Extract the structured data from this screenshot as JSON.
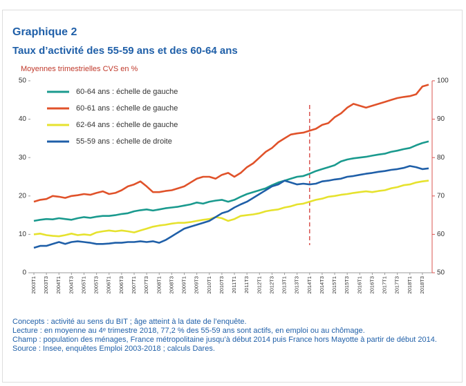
{
  "chart_data": {
    "type": "line",
    "title": "Graphique 2",
    "subtitle": "Taux d’activité des 55-59 ans et des 60-64 ans",
    "ylabel": "Moyennes trimestrielles CVS en %",
    "categories": [
      "2003T1",
      null,
      "2003T3",
      null,
      "2004T1",
      null,
      "2004T3",
      null,
      "2005T1",
      null,
      "2005T3",
      null,
      "2006T1",
      null,
      "2006T3",
      null,
      "2007T1",
      null,
      "2007T3",
      null,
      "2008T1",
      null,
      "2008T3",
      null,
      "2009T1",
      null,
      "2009T3",
      null,
      "2010T1",
      null,
      "2010T3",
      null,
      "2011T1",
      null,
      "2011T3",
      null,
      "2012T1",
      null,
      "2012T3",
      null,
      "2013T1",
      null,
      "2013T3",
      null,
      "2014T1",
      null,
      "2014T3",
      null,
      "2015T1",
      null,
      "2015T3",
      null,
      "2016T1",
      null,
      "2016T3",
      null,
      "2017T1",
      null,
      "2017T3",
      null,
      "2018T1",
      null,
      "2018T3",
      null
    ],
    "ylim": [
      0,
      50
    ],
    "yticks": [
      0,
      10,
      20,
      30,
      40,
      50
    ],
    "y2lim": [
      50,
      100
    ],
    "y2ticks": [
      50,
      60,
      70,
      80,
      90,
      100
    ],
    "y2color": "#d9534f",
    "legend": "upper left",
    "vlines": [
      {
        "x": "2014T1",
        "color": "#d9534f",
        "style": "dashed"
      }
    ],
    "series": [
      {
        "name": "60-64 ans : échelle de gauche",
        "color": "#1a9a8e",
        "values": [
          13.5,
          13.8,
          14.0,
          13.9,
          14.2,
          14.0,
          13.8,
          14.2,
          14.5,
          14.3,
          14.6,
          14.8,
          14.8,
          15.0,
          15.3,
          15.5,
          16.0,
          16.3,
          16.5,
          16.2,
          16.5,
          16.8,
          17.0,
          17.2,
          17.5,
          17.8,
          18.3,
          18.0,
          18.5,
          18.8,
          19.0,
          18.5,
          19.0,
          19.8,
          20.5,
          21.0,
          21.5,
          22.0,
          22.8,
          23.5,
          24.0,
          24.5,
          25.0,
          25.2,
          25.8,
          26.5,
          27.0,
          27.5,
          28.0,
          29.0,
          29.5,
          29.8,
          30.0,
          30.2,
          30.5,
          30.8,
          31.0,
          31.5,
          31.8,
          32.2,
          32.5,
          33.2,
          33.8,
          34.2
        ]
      },
      {
        "name": "60-61 ans : échelle de gauche",
        "color": "#e0522a",
        "values": [
          18.5,
          19.0,
          19.2,
          20.0,
          19.8,
          19.5,
          20.0,
          20.2,
          20.5,
          20.3,
          20.8,
          21.2,
          20.5,
          20.8,
          21.5,
          22.5,
          23.0,
          23.8,
          22.5,
          21.0,
          21.0,
          21.3,
          21.5,
          22.0,
          22.5,
          23.5,
          24.5,
          25.0,
          25.0,
          24.5,
          25.5,
          26.0,
          25.0,
          26.0,
          27.5,
          28.5,
          30.0,
          31.5,
          32.5,
          34.0,
          35.0,
          36.0,
          36.3,
          36.5,
          37.0,
          37.5,
          38.5,
          39.0,
          40.5,
          41.5,
          43.0,
          44.0,
          43.5,
          43.0,
          43.5,
          44.0,
          44.5,
          45.0,
          45.5,
          45.8,
          46.0,
          46.5,
          48.5,
          49.0
        ]
      },
      {
        "name": "62-64 ans : échelle de gauche",
        "color": "#e6e22e",
        "values": [
          10.0,
          10.2,
          9.8,
          9.6,
          9.5,
          9.8,
          10.2,
          9.8,
          10.0,
          9.8,
          10.5,
          10.8,
          11.0,
          10.8,
          11.0,
          10.8,
          10.5,
          11.0,
          11.5,
          12.0,
          12.3,
          12.5,
          12.8,
          13.0,
          13.0,
          13.2,
          13.5,
          13.8,
          14.0,
          14.5,
          14.2,
          13.5,
          14.0,
          14.8,
          15.0,
          15.2,
          15.5,
          16.0,
          16.3,
          16.5,
          17.0,
          17.3,
          17.8,
          18.0,
          18.5,
          19.0,
          19.3,
          19.8,
          20.0,
          20.3,
          20.5,
          20.8,
          21.0,
          21.2,
          21.0,
          21.3,
          21.5,
          22.0,
          22.3,
          22.8,
          23.0,
          23.5,
          23.8,
          24.0
        ]
      },
      {
        "name": "55-59 ans : échelle de droite",
        "color": "#1f5fa8",
        "axis": "y2",
        "values": [
          56.5,
          57.0,
          57.0,
          57.5,
          58.0,
          57.5,
          58.0,
          58.2,
          58.0,
          57.8,
          57.5,
          57.5,
          57.6,
          57.8,
          57.8,
          58.0,
          58.0,
          58.2,
          58.0,
          58.2,
          57.8,
          58.5,
          59.5,
          60.5,
          61.5,
          62.0,
          62.5,
          63.0,
          63.5,
          64.5,
          65.5,
          66.0,
          67.0,
          67.8,
          68.5,
          69.5,
          70.5,
          71.5,
          72.5,
          73.0,
          74.0,
          73.5,
          73.0,
          73.2,
          73.0,
          73.2,
          73.8,
          74.0,
          74.3,
          74.5,
          75.0,
          75.2,
          75.5,
          75.8,
          76.0,
          76.3,
          76.5,
          76.8,
          77.0,
          77.3,
          77.8,
          77.5,
          77.0,
          77.2
        ]
      }
    ],
    "notes": [
      "Concepts : activité au sens du BIT ; âge atteint à la date de l’enquête.",
      "Lecture : en moyenne au 4ᵉ trimestre 2018, 77,2 % des 55-59 ans sont actifs, en emploi ou au chômage.",
      "Champ : population des ménages, France métropolitaine jusqu’à début 2014 puis France hors Mayotte à partir de début 2014.",
      "Source : Insee, enquêtes Emploi 2003-2018 ; calculs Dares."
    ]
  }
}
